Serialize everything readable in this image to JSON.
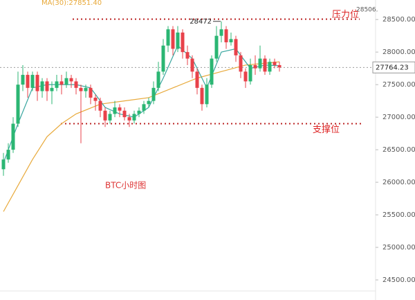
{
  "legend_text": "MA(30):27851.40",
  "chart_data": {
    "type": "candlestick",
    "title": "BTC小时图",
    "ylim": [
      24330,
      28800
    ],
    "yticks": [
      {
        "value": 24500,
        "label": "24500.00"
      },
      {
        "value": 25000,
        "label": "25000.00"
      },
      {
        "value": 25500,
        "label": "25500.00"
      },
      {
        "value": 26000,
        "label": "26000.00"
      },
      {
        "value": 26500,
        "label": "26500.00"
      },
      {
        "value": 27000,
        "label": "27000.00"
      },
      {
        "value": 27500,
        "label": "27500.00"
      },
      {
        "value": 28000,
        "label": "28000.00"
      },
      {
        "value": 28500,
        "label": "28500.00"
      }
    ],
    "up_color": "#2bb673",
    "down_color": "#e8424a",
    "open": [
      26200,
      26350,
      26500,
      26900,
      27500,
      27650,
      27450,
      27650,
      27400,
      27550,
      27400,
      27450,
      27550,
      27500,
      27600,
      27550,
      27450,
      27400,
      27450,
      27300,
      27250,
      27100,
      26950,
      27050,
      27150,
      27100,
      27000,
      26950,
      27050,
      27100,
      27200,
      27250,
      27450,
      27700,
      28100,
      28350,
      28050,
      28300,
      28000,
      27900,
      27700,
      27450,
      27200,
      27500,
      27900,
      28250,
      28350,
      28150,
      28200,
      27950,
      27700,
      27550,
      27800,
      27750,
      27900,
      27700,
      27850,
      27800
    ],
    "high": [
      26450,
      26600,
      27000,
      27700,
      27800,
      27700,
      27700,
      27700,
      27600,
      27600,
      27550,
      27650,
      27650,
      27700,
      27650,
      27600,
      27500,
      27500,
      27500,
      27350,
      27300,
      27150,
      27100,
      27250,
      27200,
      27150,
      27050,
      27100,
      27150,
      27250,
      27300,
      27550,
      27850,
      28200,
      28400,
      28400,
      28400,
      28350,
      28100,
      27950,
      27750,
      27500,
      27600,
      27950,
      28400,
      28472,
      28400,
      28300,
      28250,
      28000,
      27750,
      27900,
      27950,
      28100,
      27950,
      27900,
      27900,
      27850
    ],
    "low": [
      26100,
      26300,
      26450,
      26850,
      27400,
      27300,
      27400,
      27250,
      27300,
      27250,
      27200,
      27400,
      27350,
      27450,
      27450,
      27350,
      26600,
      27300,
      27200,
      27100,
      27000,
      26850,
      26900,
      27000,
      27000,
      26950,
      26850,
      26900,
      27000,
      27050,
      27150,
      27200,
      27400,
      27650,
      28000,
      27950,
      28000,
      27900,
      27800,
      27600,
      27350,
      27100,
      27150,
      27450,
      27850,
      28150,
      28050,
      28100,
      27850,
      27600,
      27450,
      27500,
      27650,
      27700,
      27650,
      27650,
      27750,
      27700
    ],
    "close": [
      26350,
      26500,
      26900,
      27500,
      27650,
      27450,
      27650,
      27400,
      27550,
      27400,
      27450,
      27550,
      27500,
      27600,
      27550,
      27450,
      27400,
      27450,
      27300,
      27250,
      27100,
      26950,
      27050,
      27150,
      27100,
      27000,
      26950,
      27050,
      27100,
      27200,
      27250,
      27450,
      27700,
      28100,
      28350,
      28050,
      28300,
      28000,
      27900,
      27700,
      27450,
      27200,
      27500,
      27900,
      28250,
      28350,
      28150,
      28200,
      27950,
      27700,
      27550,
      27800,
      27750,
      27900,
      27700,
      27850,
      27800,
      27764.23
    ],
    "series": [
      {
        "color": "#e8a93a",
        "x": [
          0,
          3,
          6,
          9,
          12,
          15,
          20,
          25,
          30,
          35,
          40,
          45,
          50,
          57
        ],
        "values": [
          25550,
          25950,
          26350,
          26700,
          26900,
          27050,
          27200,
          27250,
          27300,
          27450,
          27600,
          27700,
          27800,
          27850
        ]
      },
      {
        "color": "#3aa7a0",
        "x": [
          0,
          3,
          6,
          9,
          12,
          15,
          18,
          21,
          24,
          27,
          30,
          33,
          36,
          39,
          42,
          45,
          48,
          51,
          54,
          57
        ],
        "values": [
          26300,
          26900,
          27450,
          27500,
          27500,
          27500,
          27450,
          27150,
          27050,
          27000,
          27150,
          27600,
          28100,
          27900,
          27450,
          28000,
          28050,
          27750,
          27800,
          27790
        ]
      }
    ],
    "resistance": {
      "value": 28506,
      "label": "28506.",
      "name": "压力位"
    },
    "support": {
      "value": 26900,
      "name": "支撑位"
    },
    "high_note": {
      "value": 28472,
      "index": 45
    },
    "last_price": {
      "value": 27764.23,
      "label": "27764.23"
    }
  }
}
